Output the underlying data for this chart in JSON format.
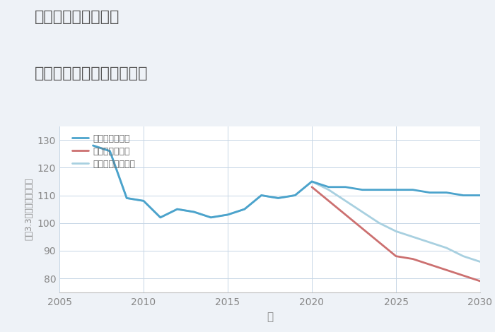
{
  "title_line1": "奈良県橿原市中町の",
  "title_line2": "中古マンションの価格推移",
  "xlabel": "年",
  "ylabel": "平（3.3㎡）単価（万円）",
  "background_color": "#eef2f7",
  "plot_bg_color": "#ffffff",
  "grid_color": "#c5d5e5",
  "title_color": "#555555",
  "xlim": [
    2005,
    2030
  ],
  "ylim": [
    75,
    135
  ],
  "yticks": [
    80,
    90,
    100,
    110,
    120,
    130
  ],
  "xticks": [
    2005,
    2010,
    2015,
    2020,
    2025,
    2030
  ],
  "good_scenario": {
    "label": "グッドシナリオ",
    "color": "#4ba3cc",
    "linewidth": 2.0,
    "x": [
      2007,
      2008,
      2009,
      2010,
      2011,
      2012,
      2013,
      2014,
      2015,
      2016,
      2017,
      2018,
      2019,
      2020,
      2021,
      2022,
      2023,
      2024,
      2025,
      2026,
      2027,
      2028,
      2029,
      2030
    ],
    "y": [
      128,
      126,
      109,
      108,
      102,
      105,
      104,
      102,
      103,
      105,
      110,
      109,
      110,
      115,
      113,
      113,
      112,
      112,
      112,
      112,
      111,
      111,
      110,
      110
    ]
  },
  "bad_scenario": {
    "label": "バッドシナリオ",
    "color": "#cc7070",
    "linewidth": 2.0,
    "x": [
      2020,
      2021,
      2022,
      2023,
      2024,
      2025,
      2026,
      2027,
      2028,
      2029,
      2030
    ],
    "y": [
      113,
      108,
      103,
      98,
      93,
      88,
      87,
      85,
      83,
      81,
      79
    ]
  },
  "normal_scenario": {
    "label": "ノーマルシナリオ",
    "color": "#a8d0e0",
    "linewidth": 2.0,
    "x": [
      2007,
      2008,
      2009,
      2010,
      2011,
      2012,
      2013,
      2014,
      2015,
      2016,
      2017,
      2018,
      2019,
      2020,
      2021,
      2022,
      2023,
      2024,
      2025,
      2026,
      2027,
      2028,
      2029,
      2030
    ],
    "y": [
      128,
      126,
      109,
      108,
      102,
      105,
      104,
      102,
      103,
      105,
      110,
      109,
      110,
      115,
      112,
      108,
      104,
      100,
      97,
      95,
      93,
      91,
      88,
      86
    ]
  }
}
